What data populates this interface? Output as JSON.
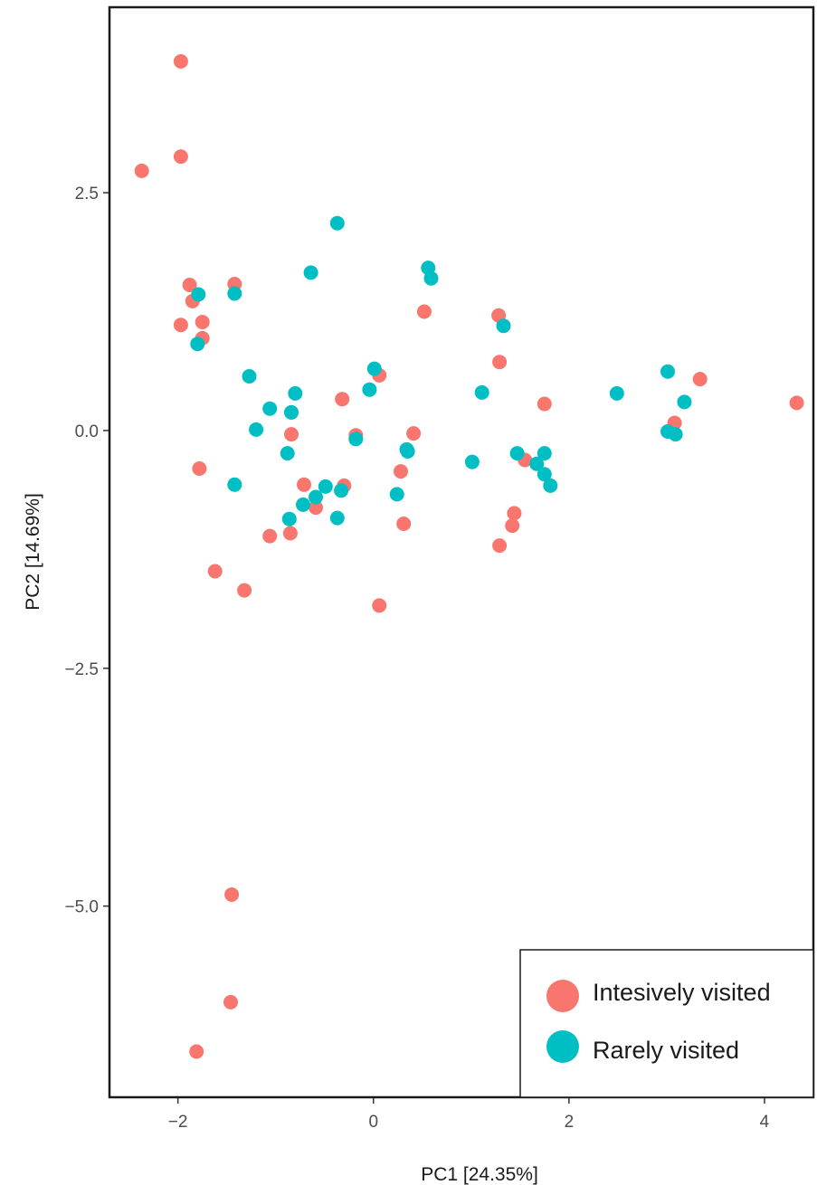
{
  "chart_data": {
    "type": "scatter",
    "xlabel": "PC1 [24.35%]",
    "ylabel": "PC2 [14.69%]",
    "xlim": [
      -2.7,
      4.5
    ],
    "ylim": [
      -7.01,
      4.45
    ],
    "x_ticks": [
      -2,
      0,
      2,
      4
    ],
    "x_tick_labels": [
      "−2",
      "0",
      "2",
      "4"
    ],
    "y_ticks": [
      -5.0,
      -2.5,
      0.0,
      2.5
    ],
    "y_tick_labels": [
      "−5.0",
      "−2.5",
      "0.0",
      "2.5"
    ],
    "grid": false,
    "legend_position": "bottom-right",
    "series": [
      {
        "name": "Intesively visited",
        "color": "#F8766D",
        "points": [
          [
            -1.97,
            3.88
          ],
          [
            -1.97,
            2.88
          ],
          [
            -2.37,
            2.73
          ],
          [
            -1.88,
            1.53
          ],
          [
            -1.42,
            1.54
          ],
          [
            -1.85,
            1.36
          ],
          [
            -1.97,
            1.11
          ],
          [
            -1.75,
            1.14
          ],
          [
            -1.75,
            0.97
          ],
          [
            -1.78,
            -0.4
          ],
          [
            -1.62,
            -1.48
          ],
          [
            -1.32,
            -1.68
          ],
          [
            -1.06,
            -1.11
          ],
          [
            -0.84,
            0.19
          ],
          [
            -0.84,
            -0.04
          ],
          [
            -0.71,
            -0.57
          ],
          [
            -0.85,
            -1.08
          ],
          [
            -0.59,
            -0.81
          ],
          [
            -0.32,
            0.33
          ],
          [
            -0.3,
            -0.58
          ],
          [
            -0.18,
            -0.05
          ],
          [
            0.06,
            0.58
          ],
          [
            0.41,
            -0.03
          ],
          [
            0.28,
            -0.43
          ],
          [
            0.31,
            -0.98
          ],
          [
            0.06,
            -1.84
          ],
          [
            0.52,
            1.25
          ],
          [
            1.28,
            1.21
          ],
          [
            1.29,
            0.72
          ],
          [
            1.75,
            0.28
          ],
          [
            1.55,
            -0.31
          ],
          [
            1.44,
            -0.87
          ],
          [
            1.42,
            -1.0
          ],
          [
            1.29,
            -1.21
          ],
          [
            3.08,
            0.08
          ],
          [
            3.34,
            0.54
          ],
          [
            4.33,
            0.29
          ],
          [
            -1.45,
            -4.88
          ],
          [
            -1.46,
            -6.01
          ],
          [
            -1.81,
            -6.53
          ]
        ]
      },
      {
        "name": "Rarely visited",
        "color": "#00BFC4",
        "points": [
          [
            -0.37,
            2.18
          ],
          [
            -0.64,
            1.66
          ],
          [
            -1.79,
            1.43
          ],
          [
            -1.42,
            1.44
          ],
          [
            -1.8,
            0.91
          ],
          [
            -1.27,
            0.57
          ],
          [
            -1.06,
            0.23
          ],
          [
            -1.2,
            0.01
          ],
          [
            -0.8,
            0.39
          ],
          [
            -0.84,
            0.19
          ],
          [
            -0.88,
            -0.24
          ],
          [
            -1.42,
            -0.57
          ],
          [
            -0.86,
            -0.93
          ],
          [
            -0.72,
            -0.78
          ],
          [
            -0.59,
            -0.7
          ],
          [
            -0.49,
            -0.59
          ],
          [
            -0.33,
            -0.63
          ],
          [
            -0.37,
            -0.92
          ],
          [
            -0.18,
            -0.09
          ],
          [
            -0.04,
            0.43
          ],
          [
            0.01,
            0.65
          ],
          [
            0.34,
            -0.2
          ],
          [
            0.35,
            -0.22
          ],
          [
            0.24,
            -0.67
          ],
          [
            0.56,
            1.71
          ],
          [
            0.59,
            1.6
          ],
          [
            1.01,
            -0.33
          ],
          [
            1.11,
            0.4
          ],
          [
            1.33,
            1.1
          ],
          [
            1.47,
            -0.24
          ],
          [
            1.67,
            -0.35
          ],
          [
            1.75,
            -0.24
          ],
          [
            1.75,
            -0.46
          ],
          [
            1.81,
            -0.58
          ],
          [
            2.49,
            0.39
          ],
          [
            3.01,
            0.62
          ],
          [
            3.01,
            -0.01
          ],
          [
            3.09,
            -0.04
          ],
          [
            3.18,
            0.3
          ]
        ]
      }
    ]
  }
}
